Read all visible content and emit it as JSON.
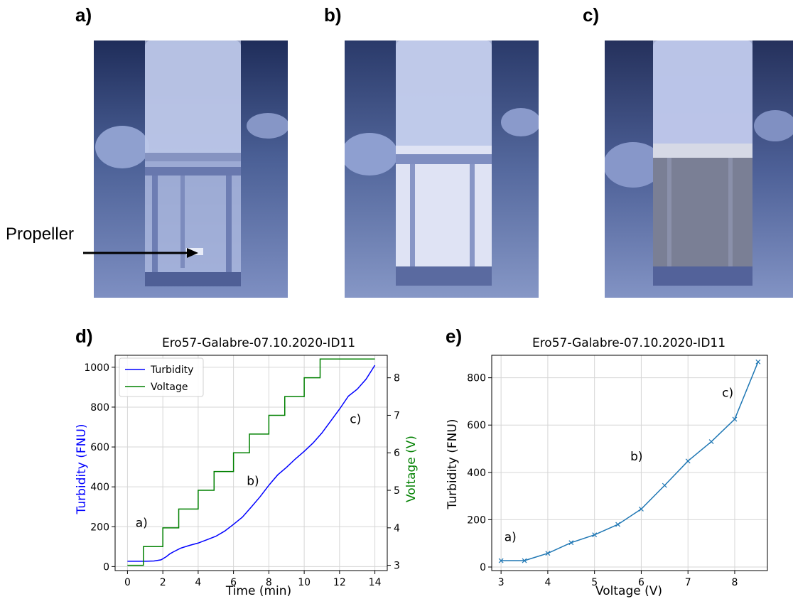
{
  "panels": {
    "a": "a)",
    "b": "b)",
    "c": "c)",
    "d": "d)",
    "e": "e)"
  },
  "photos": {
    "propeller_label": "Propeller"
  },
  "chart_data": [
    {
      "type": "line",
      "title": "Ero57-Galabre-07.10.2020-ID11",
      "xlabel": "Time (min)",
      "ylabel": "Turbidity (FNU)",
      "y2label": "Voltage (V)",
      "xlim": [
        -0.7,
        14.7
      ],
      "ylim": [
        -20,
        1060
      ],
      "y2lim": [
        2.86,
        8.6
      ],
      "xticks": [
        0,
        2,
        4,
        6,
        8,
        10,
        12,
        14
      ],
      "yticks": [
        0,
        200,
        400,
        600,
        800,
        1000
      ],
      "y2ticks": [
        3,
        4,
        5,
        6,
        7,
        8
      ],
      "grid": true,
      "legend_placement": "top-left",
      "colors": {
        "turbidity": "#0000ff",
        "voltage": "#008000"
      },
      "series": [
        {
          "name": "Turbidity",
          "axis": "left",
          "x": [
            0,
            0.5,
            1,
            1.5,
            1.9,
            2.2,
            2.4,
            2.6,
            3,
            3.5,
            4,
            4.5,
            5,
            5.5,
            6,
            6.5,
            7,
            7.5,
            8,
            8.5,
            9,
            9.5,
            10,
            10.5,
            11,
            11.5,
            12,
            12.5,
            13,
            13.5,
            14
          ],
          "y": [
            27,
            27,
            27,
            28,
            34,
            50,
            64,
            74,
            92,
            106,
            118,
            135,
            152,
            178,
            212,
            248,
            298,
            350,
            408,
            460,
            498,
            540,
            578,
            620,
            670,
            730,
            790,
            855,
            890,
            940,
            1010
          ]
        },
        {
          "name": "Voltage",
          "axis": "right",
          "x": [
            0,
            0.9,
            0.9,
            2,
            2,
            2.9,
            2.9,
            4,
            4,
            4.9,
            4.9,
            6,
            6,
            6.9,
            6.9,
            8,
            8,
            8.9,
            8.9,
            10,
            10,
            10.9,
            10.9,
            14
          ],
          "y": [
            3,
            3,
            3.5,
            3.5,
            4,
            4,
            4.5,
            4.5,
            5,
            5,
            5.5,
            5.5,
            6,
            6,
            6.5,
            6.5,
            7,
            7,
            7.5,
            7.5,
            8,
            8,
            8.5,
            8.5
          ]
        }
      ],
      "annotations": [
        {
          "text": "a)",
          "x": 0.8,
          "y": 200
        },
        {
          "text": "b)",
          "x": 7.1,
          "y": 410
        },
        {
          "text": "c)",
          "x": 12.9,
          "y": 720
        }
      ]
    },
    {
      "type": "line",
      "title": "Ero57-Galabre-07.10.2020-ID11",
      "xlabel": "Voltage (V)",
      "ylabel": "Turbidity (FNU)",
      "xlim": [
        2.8,
        8.7
      ],
      "ylim": [
        -15,
        895
      ],
      "xticks": [
        3,
        4,
        5,
        6,
        7,
        8
      ],
      "yticks": [
        0,
        200,
        400,
        600,
        800
      ],
      "grid": true,
      "colors": {
        "line": "#1f77b4"
      },
      "marker": "x",
      "series": [
        {
          "x": [
            3,
            3.5,
            4,
            4.5,
            5,
            5.5,
            6,
            6.5,
            7,
            7.5,
            8,
            8.5
          ],
          "y": [
            27,
            27,
            58,
            103,
            136,
            180,
            245,
            345,
            448,
            530,
            625,
            867
          ]
        }
      ],
      "annotations": [
        {
          "text": "a)",
          "x": 3.2,
          "y": 110
        },
        {
          "text": "b)",
          "x": 5.9,
          "y": 450
        },
        {
          "text": "c)",
          "x": 7.85,
          "y": 720
        }
      ]
    }
  ]
}
